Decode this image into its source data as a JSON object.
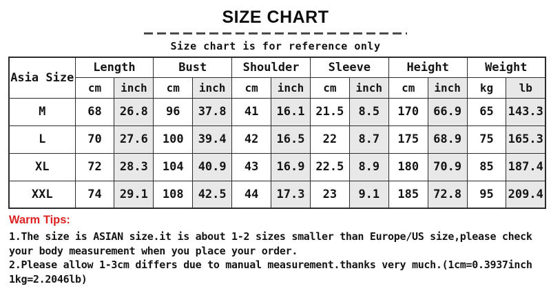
{
  "title": "SIZE CHART",
  "subtitle": "Size chart is for reference only",
  "table": {
    "corner_label": "Asia Size",
    "groups": [
      {
        "label": "Length",
        "units": [
          "cm",
          "inch"
        ]
      },
      {
        "label": "Bust",
        "units": [
          "cm",
          "inch"
        ]
      },
      {
        "label": "Shoulder",
        "units": [
          "cm",
          "inch"
        ]
      },
      {
        "label": "Sleeve",
        "units": [
          "cm",
          "inch"
        ]
      },
      {
        "label": "Height",
        "units": [
          "cm",
          "inch"
        ]
      },
      {
        "label": "Weight",
        "units": [
          "kg",
          "lb"
        ]
      }
    ],
    "rows": [
      {
        "size": "M",
        "values": [
          "68",
          "26.8",
          "96",
          "37.8",
          "41",
          "16.1",
          "21.5",
          "8.5",
          "170",
          "66.9",
          "65",
          "143.3"
        ]
      },
      {
        "size": "L",
        "values": [
          "70",
          "27.6",
          "100",
          "39.4",
          "42",
          "16.5",
          "22",
          "8.7",
          "175",
          "68.9",
          "75",
          "165.3"
        ]
      },
      {
        "size": "XL",
        "values": [
          "72",
          "28.3",
          "104",
          "40.9",
          "43",
          "16.9",
          "22.5",
          "8.9",
          "180",
          "70.9",
          "85",
          "187.4"
        ]
      },
      {
        "size": "XXL",
        "values": [
          "74",
          "29.1",
          "108",
          "42.5",
          "44",
          "17.3",
          "23",
          "9.1",
          "185",
          "72.8",
          "95",
          "209.4"
        ]
      }
    ]
  },
  "warm_tips": {
    "heading": "Warm Tips:",
    "lines": [
      "1.The size is ASIAN size.it is about 1-2 sizes smaller than Europe/US size,please check",
      "your body measurement when you place your order.",
      "2.Please allow 1-3cm differs due to manual measurement.thanks very much.(1cm=0.3937inch",
      "1kg=2.2046lb)"
    ]
  },
  "colors": {
    "accent_red": "#dd2222",
    "cell_shade": "#e8e8e8",
    "border": "#2b2b2b",
    "dash_line": "#4a4a4a"
  }
}
